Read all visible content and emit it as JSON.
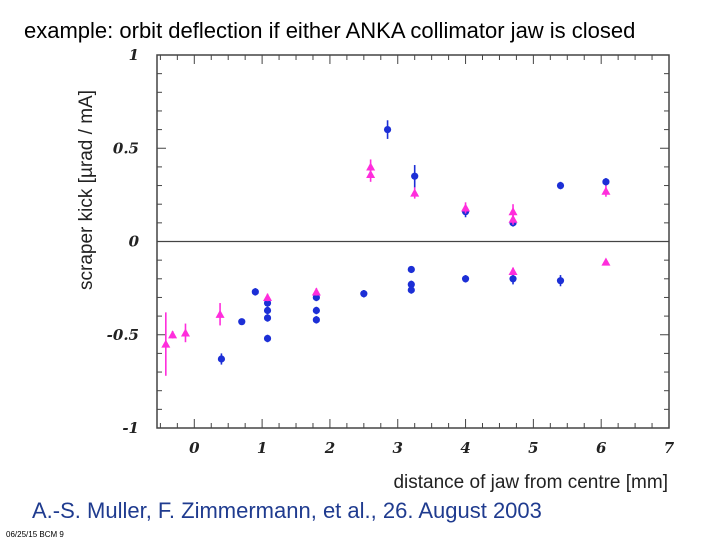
{
  "slide": {
    "title": "example: orbit deflection if either ANKA collimator jaw is closed",
    "citation": "A.-S. Muller, F. Zimmermann, et al., 26. August 2003",
    "footer": "06/25/15 BCM 9"
  },
  "colors": {
    "series_blue": "#1c2fd6",
    "series_magenta": "#ff2ddc",
    "axis": "#444444"
  },
  "chart_data": {
    "type": "scatter",
    "title": "",
    "xlabel": "distance of jaw from centre [mm]",
    "ylabel": "scraper kick [µrad / mA]",
    "xlim": [
      -0.55,
      7
    ],
    "ylim": [
      -1,
      1
    ],
    "x_ticks": [
      0,
      1,
      2,
      3,
      4,
      5,
      6,
      7
    ],
    "x_tick_labels": [
      "0",
      "1",
      "2",
      "3",
      "4",
      "5",
      "6",
      "7"
    ],
    "y_ticks": [
      -1,
      -0.5,
      0,
      0.5,
      1
    ],
    "y_tick_labels": [
      "-1",
      "-0.5",
      "0",
      "0.5",
      "1"
    ],
    "zero_line": true,
    "series": [
      {
        "name": "blue circles",
        "marker": "circle",
        "color": "#1c2fd6",
        "points": [
          {
            "x": 0.4,
            "y": -0.63,
            "err": 0.03
          },
          {
            "x": 0.7,
            "y": -0.43,
            "err": 0.01
          },
          {
            "x": 0.9,
            "y": -0.27,
            "err": 0.02
          },
          {
            "x": 1.08,
            "y": -0.33,
            "err": 0.02
          },
          {
            "x": 1.08,
            "y": -0.37,
            "err": 0.02
          },
          {
            "x": 1.08,
            "y": -0.41,
            "err": 0.02
          },
          {
            "x": 1.08,
            "y": -0.52,
            "err": 0.02
          },
          {
            "x": 1.8,
            "y": -0.3,
            "err": 0.02
          },
          {
            "x": 1.8,
            "y": -0.37,
            "err": 0.02
          },
          {
            "x": 1.8,
            "y": -0.42,
            "err": 0.02
          },
          {
            "x": 2.5,
            "y": -0.28,
            "err": 0.02
          },
          {
            "x": 2.85,
            "y": 0.6,
            "err": 0.05
          },
          {
            "x": 3.2,
            "y": -0.15,
            "err": 0.01
          },
          {
            "x": 3.2,
            "y": -0.23,
            "err": 0.02
          },
          {
            "x": 3.2,
            "y": -0.26,
            "err": 0.02
          },
          {
            "x": 3.25,
            "y": 0.35,
            "err": 0.06
          },
          {
            "x": 4.0,
            "y": 0.16,
            "err": 0.03
          },
          {
            "x": 4.0,
            "y": -0.2,
            "err": 0.02
          },
          {
            "x": 4.7,
            "y": 0.1,
            "err": 0.02
          },
          {
            "x": 4.7,
            "y": -0.2,
            "err": 0.03
          },
          {
            "x": 5.4,
            "y": 0.3,
            "err": 0.02
          },
          {
            "x": 5.4,
            "y": -0.21,
            "err": 0.03
          },
          {
            "x": 6.07,
            "y": 0.32,
            "err": 0.02
          }
        ]
      },
      {
        "name": "magenta triangles",
        "marker": "triangle",
        "color": "#ff2ddc",
        "points": [
          {
            "x": -0.42,
            "y": -0.55,
            "err": 0.17
          },
          {
            "x": -0.32,
            "y": -0.5,
            "err": 0.02
          },
          {
            "x": -0.13,
            "y": -0.49,
            "err": 0.05
          },
          {
            "x": 0.38,
            "y": -0.39,
            "err": 0.06
          },
          {
            "x": 1.08,
            "y": -0.3,
            "err": 0.02
          },
          {
            "x": 1.8,
            "y": -0.27,
            "err": 0.02
          },
          {
            "x": 2.6,
            "y": 0.4,
            "err": 0.04
          },
          {
            "x": 2.6,
            "y": 0.36,
            "err": 0.04
          },
          {
            "x": 3.25,
            "y": 0.26,
            "err": 0.03
          },
          {
            "x": 4.0,
            "y": 0.18,
            "err": 0.03
          },
          {
            "x": 4.7,
            "y": 0.16,
            "err": 0.04
          },
          {
            "x": 4.7,
            "y": 0.12,
            "err": 0.03
          },
          {
            "x": 4.7,
            "y": -0.16,
            "err": 0.02
          },
          {
            "x": 6.07,
            "y": 0.27,
            "err": 0.03
          },
          {
            "x": 6.07,
            "y": -0.11,
            "err": 0.01
          }
        ]
      }
    ]
  }
}
